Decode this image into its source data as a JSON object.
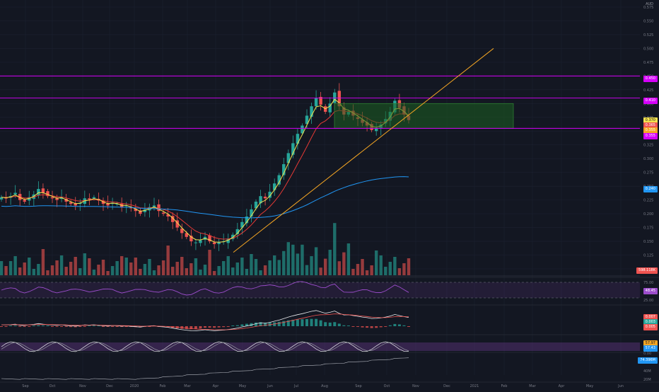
{
  "colors": {
    "background": "#131722",
    "grid": "#1c2030",
    "up": "#26a69a",
    "down": "#ef5350",
    "resistance_line": "#d500f9",
    "trendline": "#f5a623",
    "ema_fast": "#f7e34d",
    "ema_slow": "#e53935",
    "ma_long": "#2196f3",
    "zone_fill": "#1b5e20",
    "rsi": "#9c4dcc",
    "macd": "#e8eaed",
    "signal": "#ef5350",
    "stoch": "#e8eaed"
  },
  "currency": "AUD",
  "price_axis_ticks": [
    "0.575",
    "0.550",
    "0.525",
    "0.500",
    "0.475",
    "0.450",
    "0.425",
    "0.400",
    "0.375",
    "0.350",
    "0.325",
    "0.300",
    "0.275",
    "0.250",
    "0.225",
    "0.200",
    "0.175",
    "0.150",
    "0.125",
    "0.100"
  ],
  "price_tags": [
    {
      "label": "0.450",
      "value": 0.45,
      "color": "#d500f9"
    },
    {
      "label": "0.410",
      "value": 0.41,
      "color": "#d500f9"
    },
    {
      "label": "0.370",
      "value": 0.37,
      "color": "#f7e34d"
    },
    {
      "label": "0.365",
      "value": 0.365,
      "color": "#ef5350"
    },
    {
      "label": "0.355",
      "value": 0.355,
      "color": "#f5a623"
    },
    {
      "label": "0.355",
      "value": 0.355,
      "color": "#d500f9"
    },
    {
      "label": "0.240",
      "value": 0.24,
      "color": "#2196f3"
    }
  ],
  "volume_tag": {
    "label": "598.118K",
    "color": "#ef5350"
  },
  "rsi_panel": {
    "ticks": [
      "75.00",
      "25.00"
    ],
    "tag": {
      "label": "48.45",
      "color": "#9c4dcc"
    }
  },
  "macd_panel": {
    "tags": [
      {
        "label": "0.007",
        "color": "#ef5350"
      },
      {
        "label": "0.003",
        "color": "#26a69a"
      },
      {
        "label": "0.005",
        "color": "#ef5350"
      }
    ]
  },
  "stoch_panel": {
    "tags": [
      {
        "label": "57.97",
        "color": "#f5a623"
      },
      {
        "label": "57.43",
        "color": "#2196f3"
      }
    ]
  },
  "obv_panel": {
    "ticks": [
      "0.00",
      "60M",
      "40M",
      "20M"
    ],
    "tag": {
      "label": "74.396M",
      "color": "#2196f3"
    }
  },
  "x_axis_labels": [
    "Sep",
    "Oct",
    "Nov",
    "Dec",
    "2020",
    "Feb",
    "Mar",
    "Apr",
    "May",
    "Jun",
    "Jul",
    "Aug",
    "Sep",
    "Oct",
    "Nov",
    "Dec",
    "2021",
    "Feb",
    "Mar",
    "Apr",
    "May",
    "Jun"
  ],
  "chart_data": {
    "type": "candlestick",
    "symbol_currency": "AUD",
    "x_axis": [
      "Sep",
      "Oct",
      "Nov",
      "Dec",
      "2020",
      "Feb",
      "Mar",
      "Apr",
      "May",
      "Jun",
      "Jul",
      "Aug",
      "Sep",
      "Oct",
      "Nov",
      "Dec",
      "2021",
      "Feb",
      "Mar",
      "Apr",
      "May",
      "Jun"
    ],
    "y_axis": {
      "min": 0.1,
      "max": 0.575
    },
    "close_series": [
      0.23,
      0.228,
      0.232,
      0.238,
      0.225,
      0.222,
      0.23,
      0.235,
      0.245,
      0.238,
      0.232,
      0.228,
      0.225,
      0.23,
      0.222,
      0.218,
      0.215,
      0.22,
      0.228,
      0.226,
      0.23,
      0.224,
      0.218,
      0.215,
      0.22,
      0.218,
      0.212,
      0.215,
      0.21,
      0.205,
      0.2,
      0.208,
      0.212,
      0.215,
      0.205,
      0.2,
      0.195,
      0.185,
      0.175,
      0.165,
      0.158,
      0.15,
      0.148,
      0.152,
      0.158,
      0.15,
      0.145,
      0.148,
      0.15,
      0.155,
      0.162,
      0.172,
      0.185,
      0.195,
      0.208,
      0.222,
      0.232,
      0.228,
      0.24,
      0.255,
      0.27,
      0.29,
      0.31,
      0.328,
      0.345,
      0.36,
      0.378,
      0.395,
      0.41,
      0.398,
      0.385,
      0.4,
      0.42,
      0.395,
      0.38,
      0.385,
      0.378,
      0.372,
      0.365,
      0.36,
      0.352,
      0.355,
      0.362,
      0.372,
      0.385,
      0.405,
      0.392,
      0.38,
      0.37
    ],
    "levels": {
      "resistance_high": 0.45,
      "resistance_mid": 0.41,
      "support": 0.355
    },
    "zone": {
      "top": 0.4,
      "bottom": 0.355
    },
    "trendline": {
      "start": {
        "date": "Apr 2020",
        "value": 0.13
      },
      "end": {
        "date": "Jan 2021",
        "value": 0.5
      }
    },
    "last_values": {
      "close": 0.37,
      "ema_slow": 0.365,
      "ma_long": 0.24
    },
    "volume_last": "598.118K",
    "rsi_last": 48.45,
    "obv_last": "74.396M"
  }
}
